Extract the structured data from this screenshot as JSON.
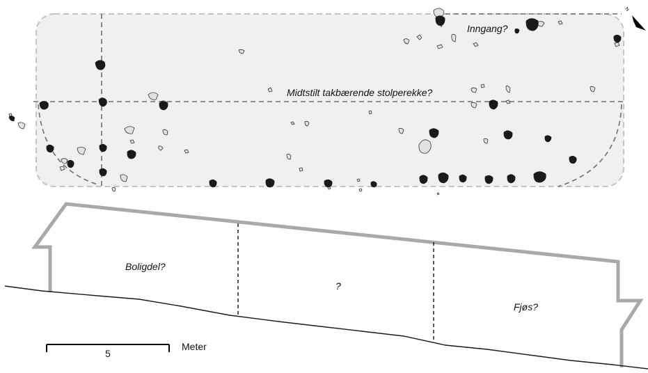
{
  "labels": {
    "entrance": "Inngang?",
    "roof_posts": "Midtstilt takbærende stolperekke?",
    "dwelling": "Boligdel?",
    "middle_room": "?",
    "byre": "Fjøs?"
  },
  "scale_bar": {
    "value": "5",
    "unit": "Meter"
  },
  "north_arrow": {
    "letter": "N"
  },
  "colors": {
    "house_area_fill": "#f0f0f0",
    "house_area_outline": "#c4c4c4",
    "post_hole_filled": "#1a1a1a",
    "pit_fill": "#e2e2e2",
    "dashed_lines": "#6e6e6e",
    "profile_outline": "#a9a9a9",
    "ground_line": "#1a1a1a"
  }
}
